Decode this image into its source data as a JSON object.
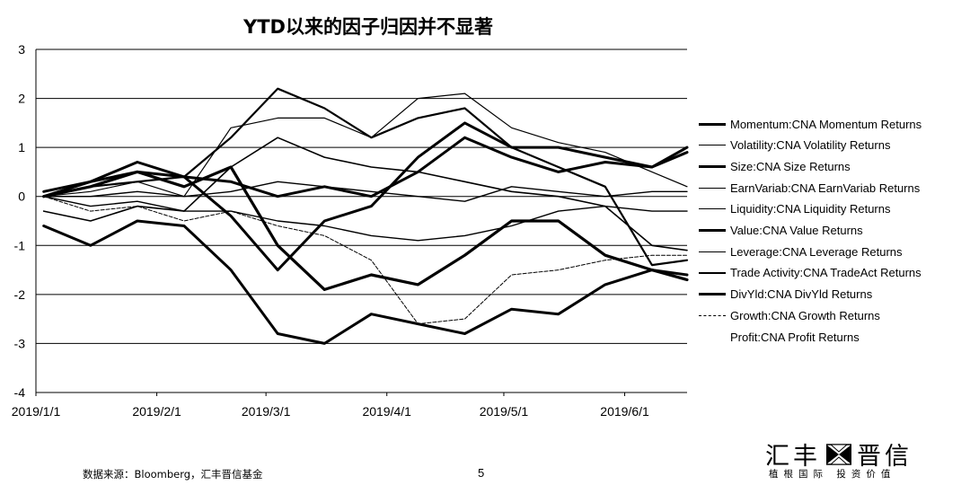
{
  "chart_data": {
    "type": "line",
    "title": "YTD以来的因子归因并不显著",
    "xlabel": "",
    "ylabel": "",
    "ylim": [
      -4,
      3
    ],
    "y_ticks": [
      "3",
      "2",
      "1",
      "0",
      "-1",
      "-2",
      "-3",
      "-4"
    ],
    "x_tick_labels": [
      "2019/1/1",
      "2019/2/1",
      "2019/3/1",
      "2019/4/1",
      "2019/5/1",
      "2019/6/1"
    ],
    "x_tick_dates": [
      "2019-01-01",
      "2019-02-01",
      "2019-03-01",
      "2019-04-01",
      "2019-05-01",
      "2019-06-01"
    ],
    "x_range": [
      "2019-01-01",
      "2019-06-17"
    ],
    "grid": true,
    "legend_position": "right",
    "x": [
      "2019-01-03",
      "2019-01-15",
      "2019-01-27",
      "2019-02-08",
      "2019-02-20",
      "2019-03-04",
      "2019-03-16",
      "2019-03-28",
      "2019-04-09",
      "2019-04-21",
      "2019-05-03",
      "2019-05-15",
      "2019-05-27",
      "2019-06-08",
      "2019-06-17"
    ],
    "series": [
      {
        "name": "Momentum:CNA Momentum Returns",
        "values": [
          0.0,
          0.3,
          0.5,
          0.4,
          -0.4,
          -1.5,
          -0.5,
          -0.2,
          0.8,
          1.5,
          1.0,
          1.0,
          0.8,
          0.6,
          1.0
        ]
      },
      {
        "name": "Volatility:CNA Volatility Returns",
        "values": [
          0.0,
          0.1,
          0.3,
          0.0,
          1.4,
          1.6,
          1.6,
          1.2,
          2.0,
          2.1,
          1.4,
          1.1,
          0.9,
          0.5,
          0.2
        ]
      },
      {
        "name": "Size:CNA Size Returns",
        "values": [
          -0.6,
          -1.0,
          -0.5,
          -0.6,
          -1.5,
          -2.8,
          -3.0,
          -2.4,
          -2.6,
          -2.8,
          -2.3,
          -2.4,
          -1.8,
          -1.5,
          -1.6
        ]
      },
      {
        "name": "EarnVariab:CNA EarnVariab Returns",
        "values": [
          0.0,
          0.0,
          0.1,
          0.0,
          0.1,
          0.3,
          0.2,
          0.1,
          0.0,
          -0.1,
          0.2,
          0.1,
          0.0,
          0.1,
          0.1
        ]
      },
      {
        "name": "Liquidity:CNA Liquidity Returns",
        "values": [
          0.0,
          -0.2,
          -0.1,
          -0.3,
          -0.3,
          -0.5,
          -0.6,
          -0.8,
          -0.9,
          -0.8,
          -0.6,
          -0.3,
          -0.2,
          -0.3,
          -0.3
        ]
      },
      {
        "name": "Value:CNA Value Returns",
        "values": [
          0.0,
          0.2,
          0.5,
          0.2,
          0.6,
          -1.0,
          -1.9,
          -1.6,
          -1.8,
          -1.2,
          -0.5,
          -0.5,
          -1.2,
          -1.5,
          -1.7
        ]
      },
      {
        "name": "Leverage:CNA Leverage Returns",
        "values": [
          -0.3,
          -0.5,
          -0.2,
          -0.3,
          0.6,
          1.2,
          0.8,
          0.6,
          0.5,
          0.3,
          0.1,
          0.0,
          -0.2,
          -1.0,
          -1.1
        ]
      },
      {
        "name": "Trade Activity:CNA TradeAct Returns",
        "values": [
          0.0,
          0.2,
          0.3,
          0.4,
          1.2,
          2.2,
          1.8,
          1.2,
          1.6,
          1.8,
          1.0,
          0.6,
          0.2,
          -1.4,
          -1.3
        ]
      },
      {
        "name": "DivYld:CNA DivYld Returns",
        "values": [
          0.1,
          0.3,
          0.7,
          0.4,
          0.3,
          0.0,
          0.2,
          0.0,
          0.5,
          1.2,
          0.8,
          0.5,
          0.7,
          0.6,
          0.9
        ]
      },
      {
        "name": "Growth:CNA Growth Returns",
        "values": [
          0.0,
          -0.3,
          -0.2,
          -0.5,
          -0.3,
          -0.6,
          -0.8,
          -1.3,
          -2.6,
          -2.5,
          -1.6,
          -1.5,
          -1.3,
          -1.2,
          -1.2
        ]
      },
      {
        "name": "Profit:CNA Profit Returns",
        "values": [
          0.0,
          -0.1,
          -0.3,
          -0.2,
          -0.4,
          -0.5,
          -0.8,
          -0.7,
          -0.6,
          -0.7,
          -0.9,
          -0.9,
          -1.0,
          -0.7,
          -0.7
        ]
      }
    ]
  },
  "footer": {
    "source": "数据来源：Bloomberg，汇丰晋信基金",
    "page": "5"
  },
  "logo": {
    "name_left": "汇丰",
    "name_right": "晋信",
    "tagline": "植根国际  投资价值"
  }
}
